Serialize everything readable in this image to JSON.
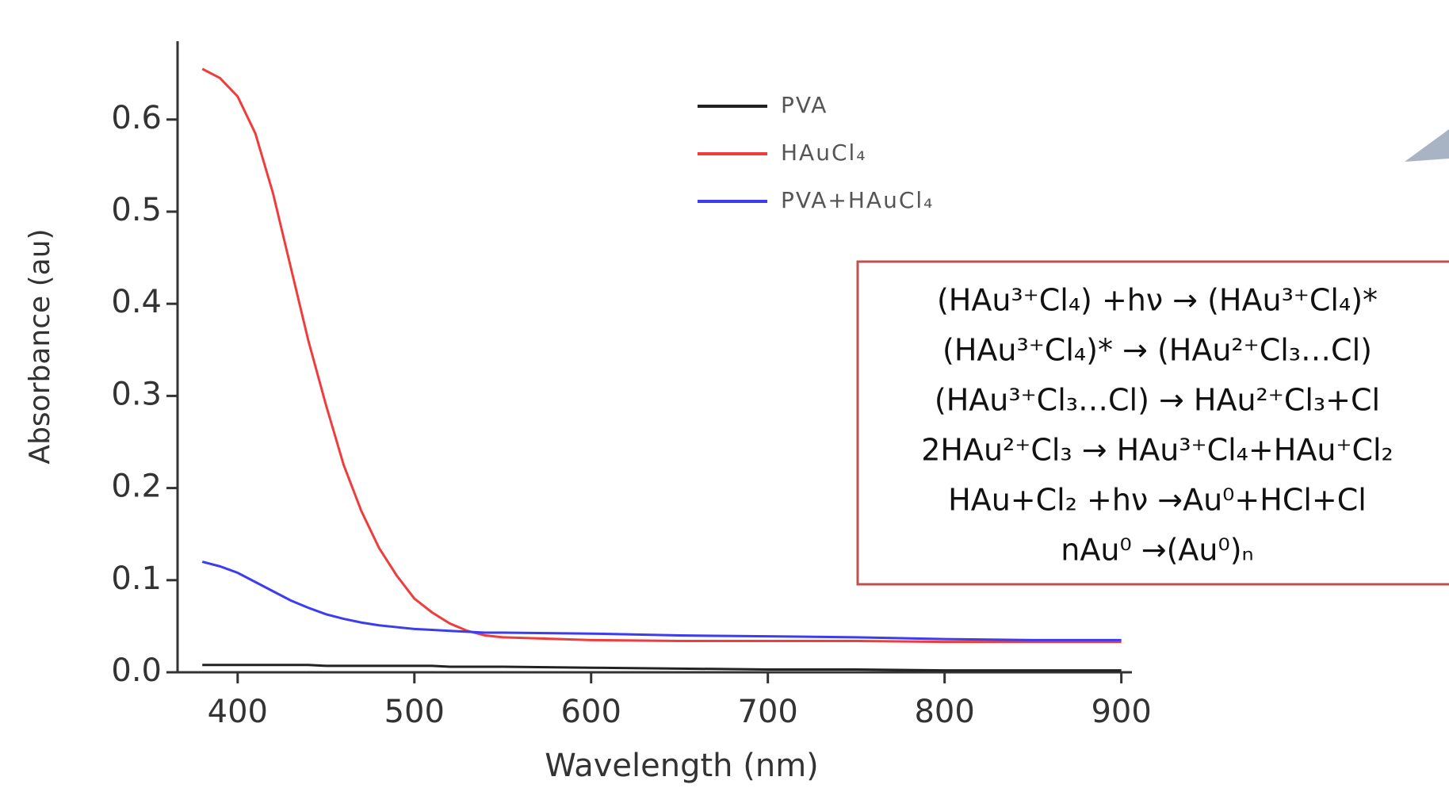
{
  "chart_data": {
    "type": "line",
    "xlabel": "Wavelength (nm)",
    "ylabel": "Absorbance (au)",
    "x": [
      380,
      390,
      400,
      410,
      420,
      430,
      440,
      450,
      460,
      470,
      480,
      490,
      500,
      510,
      520,
      530,
      540,
      550,
      600,
      650,
      700,
      750,
      800,
      850,
      900
    ],
    "series": [
      {
        "name": "PVA",
        "color": "#222222",
        "values": [
          0.008,
          0.008,
          0.008,
          0.008,
          0.008,
          0.008,
          0.008,
          0.007,
          0.007,
          0.007,
          0.007,
          0.007,
          0.007,
          0.007,
          0.006,
          0.006,
          0.006,
          0.006,
          0.005,
          0.004,
          0.003,
          0.003,
          0.002,
          0.002,
          0.002
        ]
      },
      {
        "name": "HAuCl₄",
        "color": "#f03c3c",
        "values": [
          0.655,
          0.645,
          0.625,
          0.585,
          0.52,
          0.44,
          0.36,
          0.29,
          0.225,
          0.175,
          0.135,
          0.105,
          0.08,
          0.065,
          0.053,
          0.045,
          0.04,
          0.038,
          0.035,
          0.034,
          0.034,
          0.034,
          0.033,
          0.033,
          0.033
        ]
      },
      {
        "name": "PVA+HAuCl₄",
        "color": "#3c3cf0",
        "values": [
          0.12,
          0.115,
          0.108,
          0.098,
          0.088,
          0.078,
          0.07,
          0.063,
          0.058,
          0.054,
          0.051,
          0.049,
          0.047,
          0.046,
          0.045,
          0.044,
          0.043,
          0.043,
          0.042,
          0.04,
          0.039,
          0.038,
          0.036,
          0.035,
          0.035
        ]
      }
    ],
    "xlim": [
      366,
      906
    ],
    "ylim": [
      0,
      0.685
    ],
    "xticks": [
      400,
      500,
      600,
      700,
      800,
      900
    ],
    "yticks": [
      {
        "value": 0,
        "label": "0.0"
      },
      0.1,
      0.2,
      0.3,
      0.4,
      0.5,
      0.6
    ],
    "legend": "upper center",
    "annotation": {
      "lines": [
        "(HAu³⁺Cl₄) +hν → (HAu³⁺Cl₄)*",
        "(HAu³⁺Cl₄)*  → (HAu²⁺Cl₃…Cl)",
        "(HAu³⁺Cl₃…Cl)  → HAu²⁺Cl₃+Cl",
        "2HAu²⁺Cl₃  → HAu³⁺Cl₄+HAu⁺Cl₂",
        "HAu+Cl₂ +hν →Au⁰+HCl+Cl",
        "nAu⁰ →(Au⁰)ₙ"
      ]
    }
  }
}
